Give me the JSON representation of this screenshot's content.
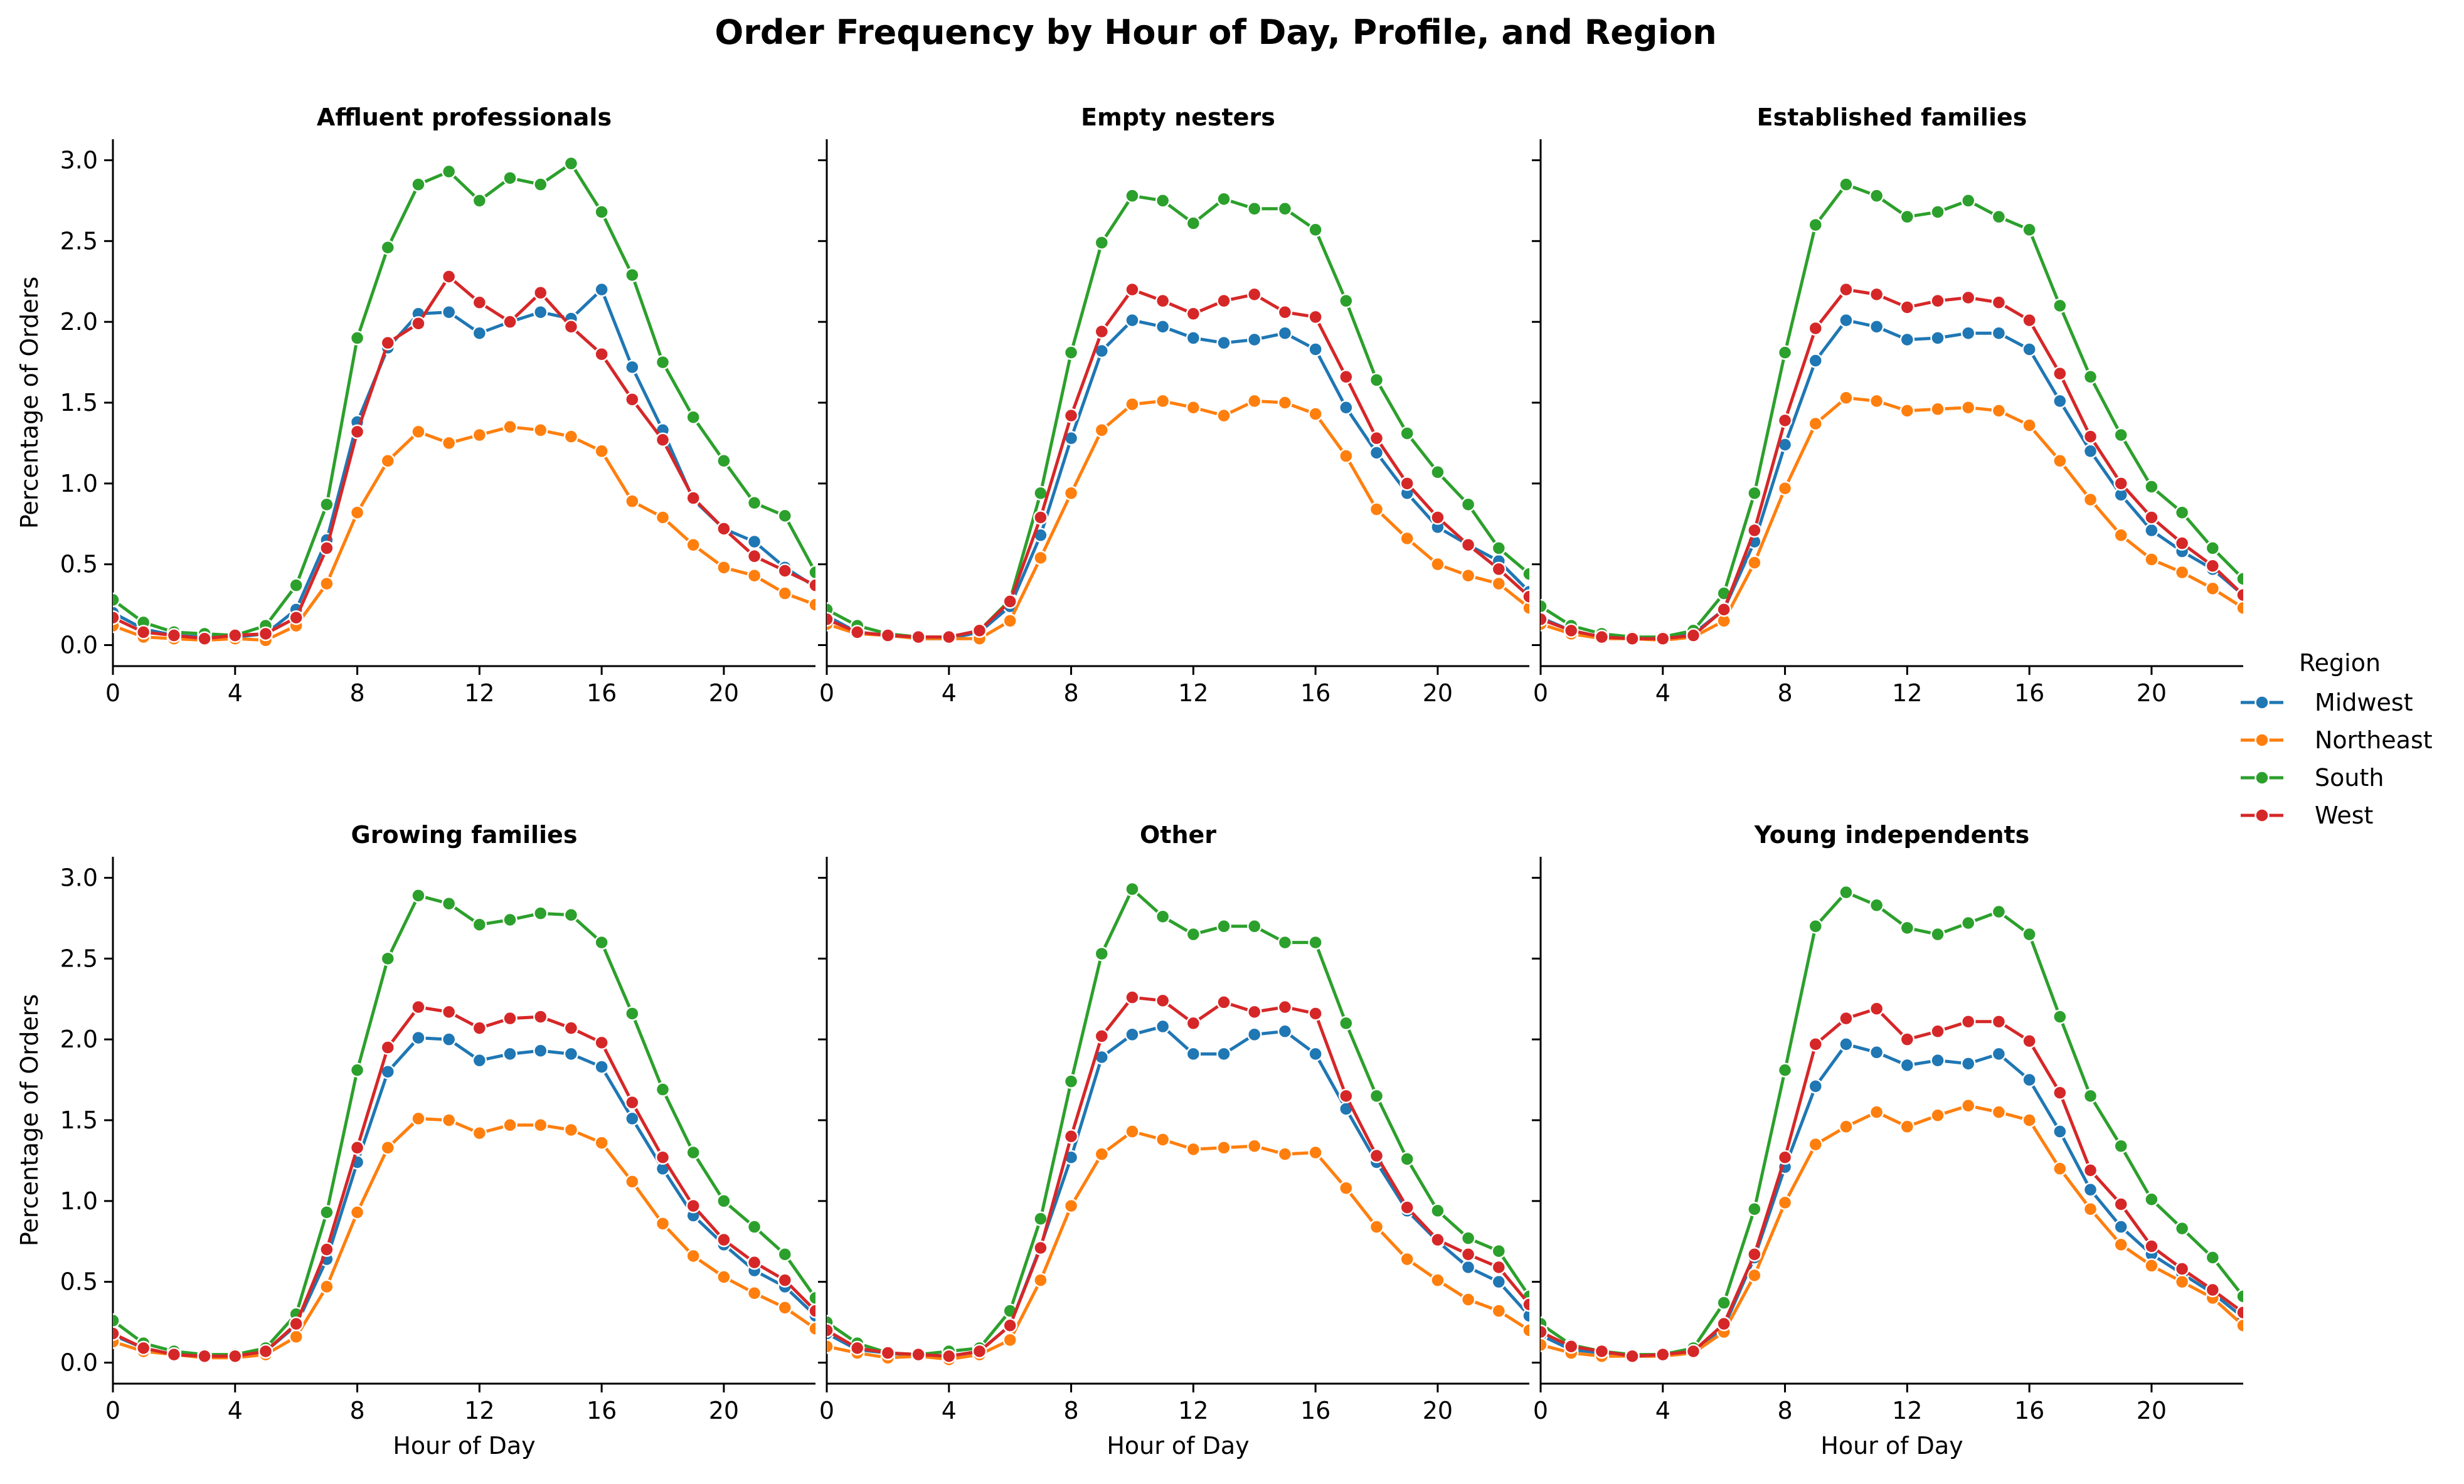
{
  "chart_data": {
    "type": "line",
    "title": "Order Frequency by Hour of Day, Profile, and Region",
    "xlabel": "Hour of Day",
    "ylabel": "Percentage of Orders",
    "xlim": [
      0,
      23
    ],
    "ylim": [
      -0.13,
      3.13
    ],
    "xticks": [
      0,
      4,
      8,
      12,
      16,
      20
    ],
    "yticks": [
      0.0,
      0.5,
      1.0,
      1.5,
      2.0,
      2.5,
      3.0
    ],
    "legend": {
      "title": "Region",
      "placement": "right",
      "entries": [
        "Midwest",
        "Northeast",
        "South",
        "West"
      ]
    },
    "colors": {
      "Midwest": "#1f77b4",
      "Northeast": "#ff7f0e",
      "South": "#2ca02c",
      "West": "#d62728"
    },
    "x": [
      0,
      1,
      2,
      3,
      4,
      5,
      6,
      7,
      8,
      9,
      10,
      11,
      12,
      13,
      14,
      15,
      16,
      17,
      18,
      19,
      20,
      21,
      22,
      23
    ],
    "panels": [
      {
        "title": "Affluent professionals",
        "series": [
          {
            "name": "Midwest",
            "values": [
              0.2,
              0.1,
              0.06,
              0.05,
              0.05,
              0.07,
              0.22,
              0.65,
              1.38,
              1.84,
              2.05,
              2.06,
              1.93,
              2.0,
              2.06,
              2.02,
              2.2,
              1.72,
              1.33,
              0.9,
              0.72,
              0.64,
              0.48,
              0.36
            ]
          },
          {
            "name": "Northeast",
            "values": [
              0.12,
              0.05,
              0.04,
              0.03,
              0.04,
              0.03,
              0.12,
              0.38,
              0.82,
              1.14,
              1.32,
              1.25,
              1.3,
              1.35,
              1.33,
              1.29,
              1.2,
              0.89,
              0.79,
              0.62,
              0.48,
              0.43,
              0.32,
              0.25
            ]
          },
          {
            "name": "South",
            "values": [
              0.28,
              0.14,
              0.08,
              0.07,
              0.06,
              0.12,
              0.37,
              0.87,
              1.9,
              2.46,
              2.85,
              2.93,
              2.75,
              2.89,
              2.85,
              2.98,
              2.68,
              2.29,
              1.75,
              1.41,
              1.14,
              0.88,
              0.8,
              0.45
            ]
          },
          {
            "name": "West",
            "values": [
              0.17,
              0.08,
              0.06,
              0.04,
              0.06,
              0.07,
              0.17,
              0.6,
              1.32,
              1.87,
              1.99,
              2.28,
              2.12,
              2.0,
              2.18,
              1.97,
              1.8,
              1.52,
              1.27,
              0.91,
              0.72,
              0.55,
              0.46,
              0.37
            ]
          }
        ]
      },
      {
        "title": "Empty nesters",
        "series": [
          {
            "name": "Midwest",
            "values": [
              0.18,
              0.08,
              0.06,
              0.04,
              0.04,
              0.08,
              0.24,
              0.68,
              1.28,
              1.82,
              2.01,
              1.97,
              1.9,
              1.87,
              1.89,
              1.93,
              1.83,
              1.47,
              1.19,
              0.94,
              0.73,
              0.62,
              0.52,
              0.33
            ]
          },
          {
            "name": "Northeast",
            "values": [
              0.13,
              0.07,
              0.06,
              0.04,
              0.04,
              0.04,
              0.15,
              0.54,
              0.94,
              1.33,
              1.49,
              1.51,
              1.47,
              1.42,
              1.51,
              1.5,
              1.43,
              1.17,
              0.84,
              0.66,
              0.5,
              0.43,
              0.38,
              0.23
            ]
          },
          {
            "name": "South",
            "values": [
              0.22,
              0.12,
              0.07,
              0.05,
              0.05,
              0.09,
              0.28,
              0.94,
              1.81,
              2.49,
              2.78,
              2.75,
              2.61,
              2.76,
              2.7,
              2.7,
              2.57,
              2.13,
              1.64,
              1.31,
              1.07,
              0.87,
              0.6,
              0.44
            ]
          },
          {
            "name": "West",
            "values": [
              0.16,
              0.08,
              0.06,
              0.05,
              0.05,
              0.09,
              0.27,
              0.79,
              1.42,
              1.94,
              2.2,
              2.13,
              2.05,
              2.13,
              2.17,
              2.06,
              2.03,
              1.66,
              1.28,
              1.0,
              0.79,
              0.62,
              0.47,
              0.3
            ]
          }
        ]
      },
      {
        "title": "Established families",
        "series": [
          {
            "name": "Midwest",
            "values": [
              0.17,
              0.09,
              0.05,
              0.04,
              0.04,
              0.07,
              0.22,
              0.64,
              1.24,
              1.76,
              2.01,
              1.97,
              1.89,
              1.9,
              1.93,
              1.93,
              1.83,
              1.51,
              1.2,
              0.93,
              0.71,
              0.58,
              0.47,
              0.31
            ]
          },
          {
            "name": "Northeast",
            "values": [
              0.13,
              0.07,
              0.04,
              0.04,
              0.03,
              0.05,
              0.15,
              0.51,
              0.97,
              1.37,
              1.53,
              1.51,
              1.45,
              1.46,
              1.47,
              1.45,
              1.36,
              1.14,
              0.9,
              0.68,
              0.53,
              0.45,
              0.35,
              0.23
            ]
          },
          {
            "name": "South",
            "values": [
              0.24,
              0.12,
              0.07,
              0.05,
              0.05,
              0.09,
              0.32,
              0.94,
              1.81,
              2.6,
              2.85,
              2.78,
              2.65,
              2.68,
              2.75,
              2.65,
              2.57,
              2.1,
              1.66,
              1.3,
              0.98,
              0.82,
              0.6,
              0.41
            ]
          },
          {
            "name": "West",
            "values": [
              0.16,
              0.09,
              0.05,
              0.04,
              0.04,
              0.06,
              0.22,
              0.71,
              1.39,
              1.96,
              2.2,
              2.17,
              2.09,
              2.13,
              2.15,
              2.12,
              2.01,
              1.68,
              1.29,
              1.0,
              0.79,
              0.63,
              0.49,
              0.31
            ]
          }
        ]
      },
      {
        "title": "Growing families",
        "series": [
          {
            "name": "Midwest",
            "values": [
              0.17,
              0.09,
              0.05,
              0.04,
              0.04,
              0.07,
              0.23,
              0.64,
              1.24,
              1.8,
              2.01,
              2.0,
              1.87,
              1.91,
              1.93,
              1.91,
              1.83,
              1.51,
              1.2,
              0.91,
              0.73,
              0.57,
              0.47,
              0.29
            ]
          },
          {
            "name": "Northeast",
            "values": [
              0.13,
              0.07,
              0.05,
              0.03,
              0.03,
              0.05,
              0.16,
              0.47,
              0.93,
              1.33,
              1.51,
              1.5,
              1.42,
              1.47,
              1.47,
              1.44,
              1.36,
              1.12,
              0.86,
              0.66,
              0.53,
              0.43,
              0.34,
              0.21
            ]
          },
          {
            "name": "South",
            "values": [
              0.26,
              0.12,
              0.07,
              0.05,
              0.05,
              0.09,
              0.3,
              0.93,
              1.81,
              2.5,
              2.89,
              2.84,
              2.71,
              2.74,
              2.78,
              2.77,
              2.6,
              2.16,
              1.69,
              1.3,
              1.0,
              0.84,
              0.67,
              0.4
            ]
          },
          {
            "name": "West",
            "values": [
              0.18,
              0.09,
              0.05,
              0.04,
              0.04,
              0.07,
              0.24,
              0.7,
              1.33,
              1.95,
              2.2,
              2.17,
              2.07,
              2.13,
              2.14,
              2.07,
              1.98,
              1.61,
              1.27,
              0.97,
              0.76,
              0.62,
              0.51,
              0.32
            ]
          }
        ]
      },
      {
        "title": "Other",
        "series": [
          {
            "name": "Midwest",
            "values": [
              0.18,
              0.08,
              0.06,
              0.04,
              0.04,
              0.07,
              0.23,
              0.72,
              1.27,
              1.89,
              2.03,
              2.08,
              1.91,
              1.91,
              2.03,
              2.05,
              1.91,
              1.57,
              1.24,
              0.94,
              0.75,
              0.59,
              0.5,
              0.29
            ]
          },
          {
            "name": "Northeast",
            "values": [
              0.1,
              0.06,
              0.03,
              0.04,
              0.02,
              0.05,
              0.14,
              0.51,
              0.97,
              1.29,
              1.43,
              1.38,
              1.32,
              1.33,
              1.34,
              1.29,
              1.3,
              1.08,
              0.84,
              0.64,
              0.51,
              0.39,
              0.32,
              0.2
            ]
          },
          {
            "name": "South",
            "values": [
              0.25,
              0.12,
              0.06,
              0.05,
              0.07,
              0.09,
              0.32,
              0.89,
              1.74,
              2.53,
              2.93,
              2.76,
              2.65,
              2.7,
              2.7,
              2.6,
              2.6,
              2.1,
              1.65,
              1.26,
              0.94,
              0.77,
              0.69,
              0.41
            ]
          },
          {
            "name": "West",
            "values": [
              0.2,
              0.09,
              0.06,
              0.05,
              0.04,
              0.07,
              0.23,
              0.71,
              1.4,
              2.02,
              2.26,
              2.24,
              2.1,
              2.23,
              2.17,
              2.2,
              2.16,
              1.65,
              1.28,
              0.96,
              0.76,
              0.67,
              0.59,
              0.36
            ]
          }
        ]
      },
      {
        "title": "Young independents",
        "series": [
          {
            "name": "Midwest",
            "values": [
              0.17,
              0.08,
              0.06,
              0.04,
              0.04,
              0.07,
              0.22,
              0.65,
              1.21,
              1.71,
              1.97,
              1.92,
              1.84,
              1.87,
              1.85,
              1.91,
              1.75,
              1.43,
              1.07,
              0.84,
              0.67,
              0.55,
              0.43,
              0.28
            ]
          },
          {
            "name": "Northeast",
            "values": [
              0.11,
              0.06,
              0.04,
              0.04,
              0.04,
              0.06,
              0.19,
              0.54,
              0.99,
              1.35,
              1.46,
              1.55,
              1.46,
              1.53,
              1.59,
              1.55,
              1.5,
              1.2,
              0.95,
              0.73,
              0.6,
              0.5,
              0.4,
              0.23
            ]
          },
          {
            "name": "South",
            "values": [
              0.24,
              0.11,
              0.07,
              0.05,
              0.05,
              0.09,
              0.37,
              0.95,
              1.81,
              2.7,
              2.91,
              2.83,
              2.69,
              2.65,
              2.72,
              2.79,
              2.65,
              2.14,
              1.65,
              1.34,
              1.01,
              0.83,
              0.65,
              0.41
            ]
          },
          {
            "name": "West",
            "values": [
              0.19,
              0.1,
              0.07,
              0.04,
              0.05,
              0.07,
              0.24,
              0.67,
              1.27,
              1.97,
              2.13,
              2.19,
              2.0,
              2.05,
              2.11,
              2.11,
              1.99,
              1.67,
              1.19,
              0.98,
              0.72,
              0.58,
              0.45,
              0.31
            ]
          }
        ]
      }
    ]
  }
}
